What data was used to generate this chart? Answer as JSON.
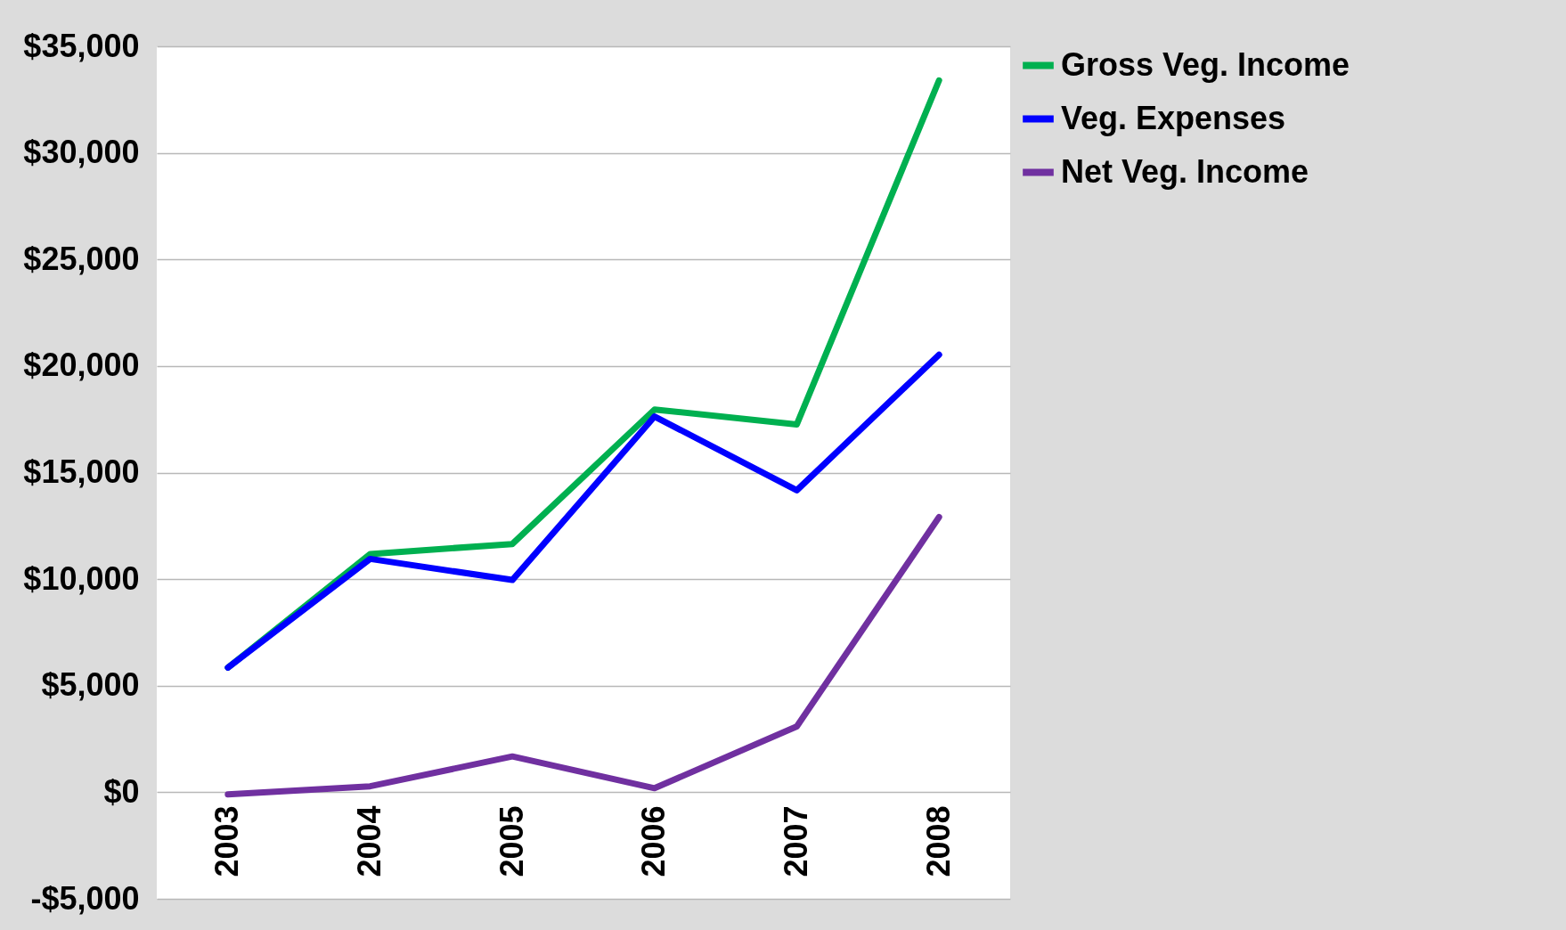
{
  "chart_data": {
    "type": "line",
    "categories": [
      "2003",
      "2004",
      "2005",
      "2006",
      "2007",
      "2008"
    ],
    "series": [
      {
        "name": "Gross Veg. Income",
        "color": "#00b050",
        "values": [
          5850,
          11180,
          11650,
          17960,
          17260,
          33400
        ]
      },
      {
        "name": "Veg. Expenses",
        "color": "#0000ff",
        "values": [
          5850,
          10950,
          9960,
          17630,
          14170,
          20530
        ]
      },
      {
        "name": "Net Veg. Income",
        "color": "#7030a0",
        "values": [
          -100,
          280,
          1680,
          190,
          3090,
          12910
        ]
      }
    ],
    "ylim": [
      -5000,
      35000
    ],
    "yticks": [
      {
        "value": -5000,
        "label": "-$5,000"
      },
      {
        "value": 0,
        "label": "$0"
      },
      {
        "value": 5000,
        "label": "$5,000"
      },
      {
        "value": 10000,
        "label": "$10,000"
      },
      {
        "value": 15000,
        "label": "$15,000"
      },
      {
        "value": 20000,
        "label": "$20,000"
      },
      {
        "value": 25000,
        "label": "$25,000"
      },
      {
        "value": 30000,
        "label": "$30,000"
      },
      {
        "value": 35000,
        "label": "$35,000"
      }
    ],
    "grid": "y",
    "legend": "right",
    "marker": "none",
    "line_style": "solid"
  }
}
